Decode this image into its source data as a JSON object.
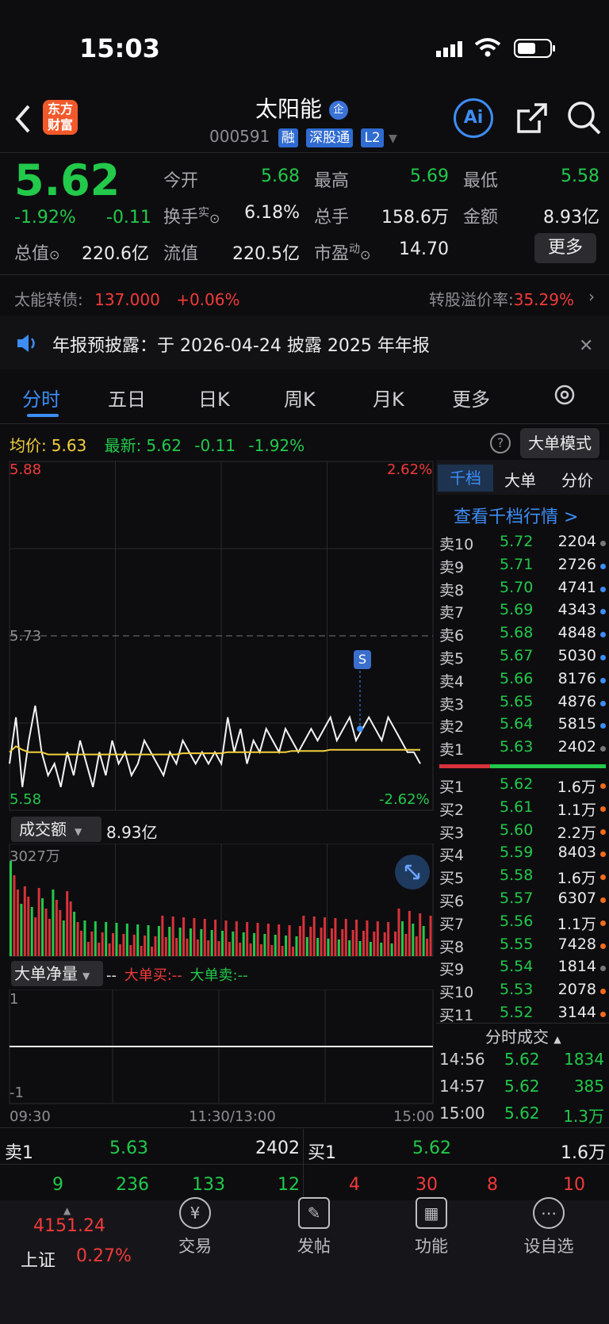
{
  "status_bar": {
    "time": "15:03"
  },
  "header": {
    "logo": "东方财富",
    "stock_name": "太阳能",
    "name_badge": "企",
    "stock_code": "000591",
    "tags": [
      "融",
      "深股通",
      "L2"
    ],
    "ai_label": "Ai"
  },
  "quote": {
    "price": "5.62",
    "change_pct": "-1.92%",
    "change": "-0.11",
    "open_label": "今开",
    "open": "5.68",
    "high_label": "最高",
    "high": "5.69",
    "low_label": "最低",
    "low": "5.58",
    "turnover_label": "换手",
    "turnover_sup": "实",
    "turnover": "6.18%",
    "volume_label": "总手",
    "volume": "158.6万",
    "amount_label": "金额",
    "amount": "8.93亿",
    "mcap_label": "总值",
    "mcap": "220.6亿",
    "float_label": "流值",
    "float": "220.5亿",
    "pe_label": "市盈",
    "pe_sup": "动",
    "pe": "14.70",
    "more_button": "更多"
  },
  "bond": {
    "label": "太能转债:",
    "price": "137.000",
    "change": "+0.06%",
    "premium_label": "转股溢价率:",
    "premium": "35.29%"
  },
  "notice": {
    "text": "年报预披露：于 2026-04-24 披露 2025 年年报"
  },
  "tabs": [
    "分时",
    "五日",
    "日K",
    "周K",
    "月K",
    "更多"
  ],
  "chart_header": {
    "avg_label": "均价:",
    "avg": "5.63",
    "latest_label": "最新:",
    "latest": "5.62",
    "change": "-0.11",
    "change_pct": "-1.92%",
    "mode_button": "大单模式"
  },
  "chart_data": {
    "type": "line",
    "price_axis": {
      "top": "5.88",
      "mid": "5.73",
      "bottom": "5.58",
      "top_pct": "2.62%",
      "bottom_pct": "-2.62%"
    },
    "ylim": [
      5.58,
      5.88
    ],
    "time_labels": [
      "09:30",
      "11:30/13:00",
      "15:00"
    ],
    "series": [
      {
        "name": "价格",
        "values": [
          5.62,
          5.66,
          5.6,
          5.64,
          5.67,
          5.63,
          5.61,
          5.62,
          5.6,
          5.63,
          5.61,
          5.64,
          5.62,
          5.6,
          5.63,
          5.61,
          5.64,
          5.62,
          5.63,
          5.61,
          5.62,
          5.64,
          5.63,
          5.62,
          5.61,
          5.63,
          5.62,
          5.64,
          5.63,
          5.62,
          5.63,
          5.62,
          5.63,
          5.62,
          5.66,
          5.63,
          5.65,
          5.62,
          5.64,
          5.63,
          5.65,
          5.64,
          5.63,
          5.65,
          5.64,
          5.63,
          5.64,
          5.65,
          5.64,
          5.65,
          5.66,
          5.64,
          5.65,
          5.66,
          5.64,
          5.65,
          5.66,
          5.65,
          5.64,
          5.66,
          5.65,
          5.64,
          5.63,
          5.63,
          5.62
        ]
      },
      {
        "name": "均价",
        "values": [
          5.63,
          5.635,
          5.632,
          5.63,
          5.63,
          5.63,
          5.628,
          5.628,
          5.628,
          5.628,
          5.628,
          5.628,
          5.628,
          5.628,
          5.628,
          5.628,
          5.628,
          5.628,
          5.628,
          5.628,
          5.628,
          5.628,
          5.628,
          5.628,
          5.628,
          5.628,
          5.628,
          5.629,
          5.629,
          5.629,
          5.629,
          5.629,
          5.629,
          5.629,
          5.63,
          5.63,
          5.63,
          5.63,
          5.63,
          5.63,
          5.63,
          5.63,
          5.63,
          5.63,
          5.631,
          5.631,
          5.631,
          5.631,
          5.631,
          5.631,
          5.632,
          5.632,
          5.632,
          5.632,
          5.632,
          5.632,
          5.632,
          5.632,
          5.632,
          5.632,
          5.632,
          5.632,
          5.632,
          5.632,
          5.632
        ]
      }
    ],
    "marker_label": "S",
    "volume_label": "成交额",
    "volume_total": "8.93亿",
    "volume_max": "3027万",
    "bigorder_label": "大单净量",
    "bigorder_value": "--",
    "bigorder_buy": "大单买:--",
    "bigorder_sell": "大单卖:--",
    "bigorder_top": "1",
    "bigorder_bottom": "-1"
  },
  "orderbook": {
    "tabs": [
      "千档",
      "大单",
      "分价"
    ],
    "link": "查看千档行情 >",
    "asks": [
      {
        "label": "卖10",
        "price": "5.72",
        "vol": "2204",
        "dot": "#777"
      },
      {
        "label": "卖9",
        "price": "5.71",
        "vol": "2726",
        "dot": "#3d8df5"
      },
      {
        "label": "卖8",
        "price": "5.70",
        "vol": "4741",
        "dot": "#3d8df5"
      },
      {
        "label": "卖7",
        "price": "5.69",
        "vol": "4343",
        "dot": "#3d8df5"
      },
      {
        "label": "卖6",
        "price": "5.68",
        "vol": "4848",
        "dot": "#3d8df5"
      },
      {
        "label": "卖5",
        "price": "5.67",
        "vol": "5030",
        "dot": "#3d8df5"
      },
      {
        "label": "卖4",
        "price": "5.66",
        "vol": "8176",
        "dot": "#3d8df5"
      },
      {
        "label": "卖3",
        "price": "5.65",
        "vol": "4876",
        "dot": "#3d8df5"
      },
      {
        "label": "卖2",
        "price": "5.64",
        "vol": "5815",
        "dot": "#3d8df5"
      },
      {
        "label": "卖1",
        "price": "5.63",
        "vol": "2402",
        "dot": "#777"
      }
    ],
    "bids": [
      {
        "label": "买1",
        "price": "5.62",
        "vol": "1.6万",
        "dot": "#f26a1b"
      },
      {
        "label": "买2",
        "price": "5.61",
        "vol": "1.1万",
        "dot": "#f26a1b"
      },
      {
        "label": "买3",
        "price": "5.60",
        "vol": "2.2万",
        "dot": "#f26a1b"
      },
      {
        "label": "买4",
        "price": "5.59",
        "vol": "8403",
        "dot": "#f26a1b"
      },
      {
        "label": "买5",
        "price": "5.58",
        "vol": "1.6万",
        "dot": "#f26a1b"
      },
      {
        "label": "买6",
        "price": "5.57",
        "vol": "6307",
        "dot": "#f26a1b"
      },
      {
        "label": "买7",
        "price": "5.56",
        "vol": "1.1万",
        "dot": "#f26a1b"
      },
      {
        "label": "买8",
        "price": "5.55",
        "vol": "7428",
        "dot": "#f26a1b"
      },
      {
        "label": "买9",
        "price": "5.54",
        "vol": "1814",
        "dot": "#777"
      },
      {
        "label": "买10",
        "price": "5.53",
        "vol": "2078",
        "dot": "#f26a1b"
      },
      {
        "label": "买11",
        "price": "5.52",
        "vol": "3144",
        "dot": "#f26a1b"
      }
    ],
    "trades_label": "分时成交",
    "trades": [
      {
        "time": "14:56",
        "price": "5.62",
        "vol": "1834"
      },
      {
        "time": "14:57",
        "price": "5.62",
        "vol": "385"
      },
      {
        "time": "15:00",
        "price": "5.62",
        "vol": "1.3万"
      }
    ]
  },
  "bottom_quote": {
    "sell_label": "卖1",
    "sell_price": "5.63",
    "sell_vol": "2402",
    "buy_label": "买1",
    "buy_price": "5.62",
    "buy_vol": "1.6万",
    "left_counts": [
      "9",
      "236",
      "133",
      "12"
    ],
    "right_counts": [
      "4",
      "30",
      "8",
      "10"
    ]
  },
  "bottom_nav": {
    "index_value": "4151.24",
    "index_name": "上证",
    "index_change": "0.27%",
    "items": [
      "交易",
      "发帖",
      "功能",
      "设自选"
    ]
  },
  "colors": {
    "up": "#f23a3a",
    "down": "#22c94b",
    "accent": "#3d8df5",
    "avg_line": "#f3d03c"
  }
}
